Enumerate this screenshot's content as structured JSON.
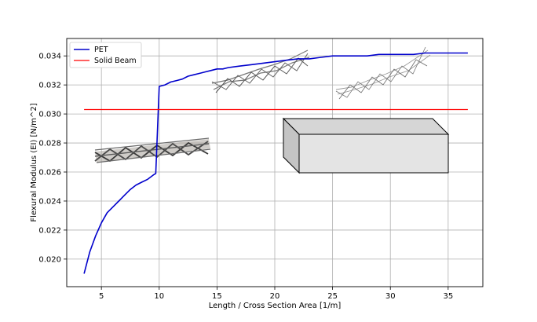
{
  "chart_data": {
    "type": "line",
    "xlabel": "Length / Cross Section Area [1/m]",
    "ylabel": "Flexural Modulus (EI) [N/m^2]",
    "xlim": [
      2.0,
      38.0
    ],
    "ylim": [
      0.0181,
      0.0352
    ],
    "xticks": [
      5,
      10,
      15,
      20,
      25,
      30,
      35
    ],
    "yticks": [
      0.02,
      0.022,
      0.024,
      0.026,
      0.028,
      0.03,
      0.032,
      0.034
    ],
    "grid": true,
    "legend_position": "top-left",
    "series": [
      {
        "name": "PET",
        "color": "#0000cc",
        "x": [
          3.5,
          4.0,
          4.5,
          5.0,
          5.5,
          6.0,
          6.5,
          7.0,
          7.5,
          8.0,
          8.5,
          9.0,
          9.5,
          9.7,
          10.0,
          10.5,
          11.0,
          11.5,
          12.0,
          12.5,
          13.0,
          13.5,
          14.0,
          14.5,
          15.0,
          15.5,
          16.0,
          17.0,
          18.0,
          19.0,
          20.0,
          21.0,
          22.0,
          23.0,
          24.0,
          25.0,
          26.0,
          27.0,
          28.0,
          29.0,
          30.0,
          31.0,
          32.0,
          33.0,
          34.0,
          35.0,
          36.7
        ],
        "y": [
          0.019,
          0.0205,
          0.0216,
          0.0225,
          0.0232,
          0.0236,
          0.024,
          0.0244,
          0.0248,
          0.0251,
          0.0253,
          0.0255,
          0.0258,
          0.0259,
          0.0319,
          0.032,
          0.0322,
          0.0323,
          0.0324,
          0.0326,
          0.0327,
          0.0328,
          0.0329,
          0.033,
          0.0331,
          0.0331,
          0.0332,
          0.0333,
          0.0334,
          0.0335,
          0.0336,
          0.0337,
          0.0338,
          0.0338,
          0.0339,
          0.034,
          0.034,
          0.034,
          0.034,
          0.0341,
          0.0341,
          0.0341,
          0.0341,
          0.0342,
          0.0342,
          0.0342,
          0.0342
        ]
      },
      {
        "name": "Solid Beam",
        "color": "#ff0000",
        "x": [
          3.5,
          36.7
        ],
        "y": [
          0.0303,
          0.0303
        ]
      }
    ]
  }
}
